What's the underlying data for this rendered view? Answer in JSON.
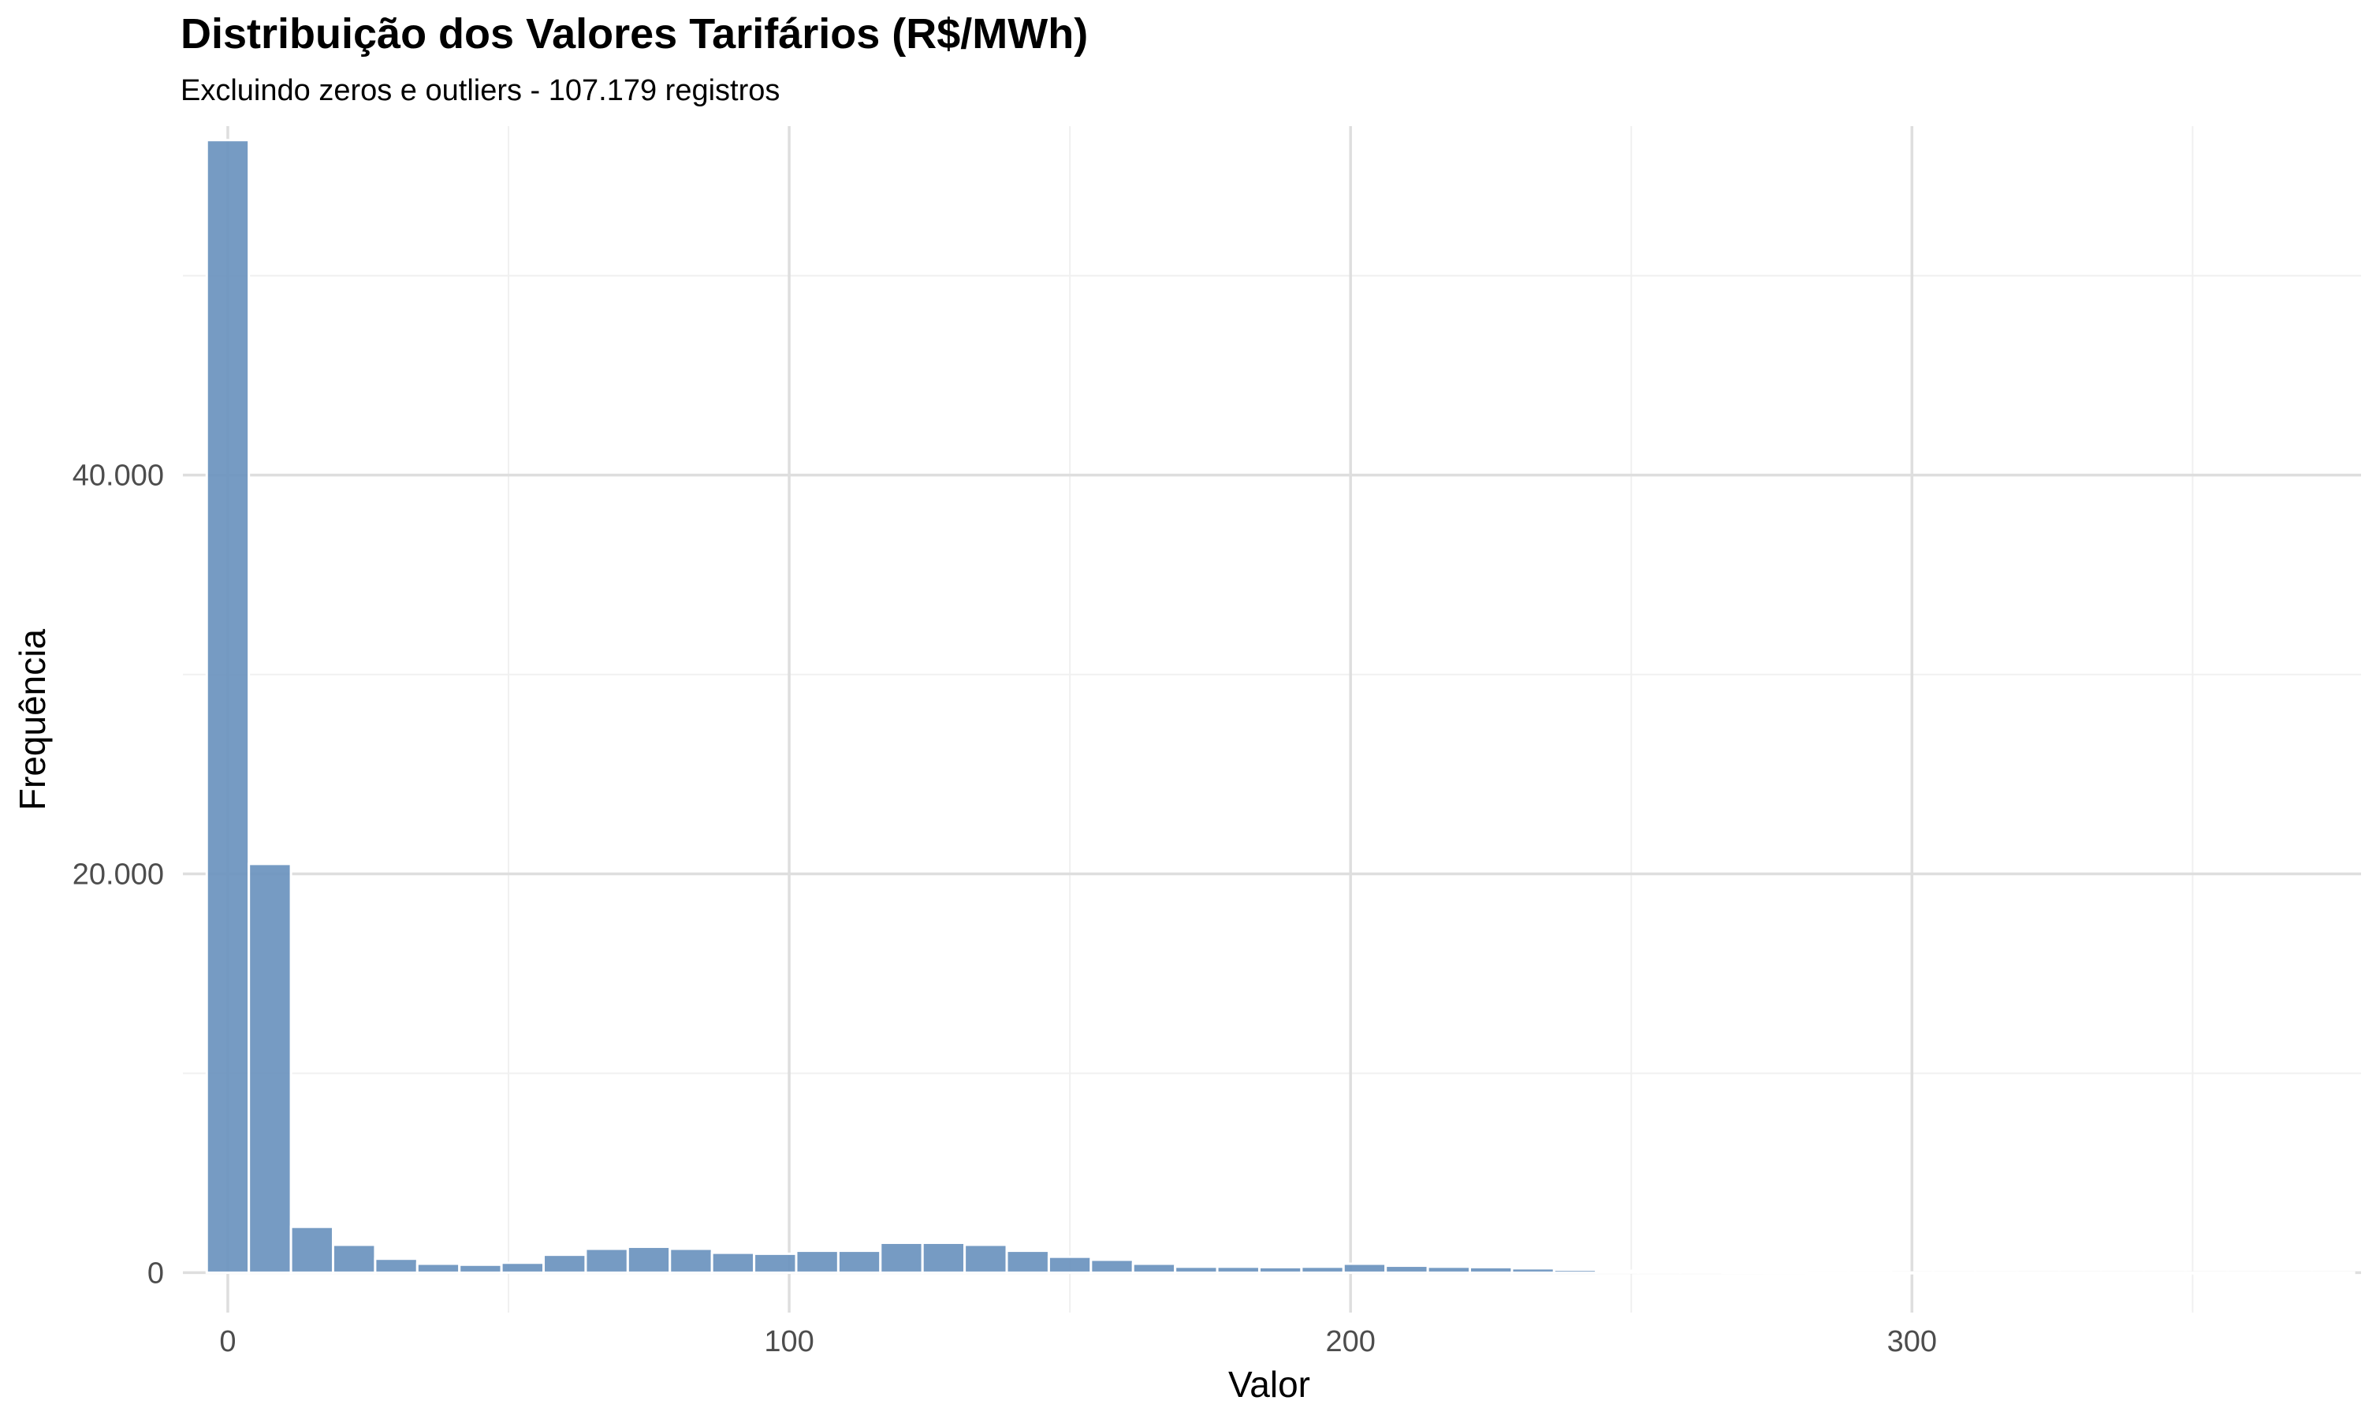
{
  "chart_data": {
    "type": "bar",
    "title": "Distribuição dos Valores Tarifários (R$/MWh)",
    "subtitle": "Excluindo zeros e outliers - 107.179 registros",
    "xlabel": "Valor",
    "ylabel": "Frequência",
    "xlim": [
      -8,
      380
    ],
    "ylim": [
      -2000,
      57500
    ],
    "x_ticks": [
      0,
      100,
      200,
      300
    ],
    "x_tick_labels": [
      "0",
      "100",
      "200",
      "300"
    ],
    "y_ticks": [
      0,
      20000,
      40000
    ],
    "y_tick_labels": [
      "0",
      "20.000",
      "40.000"
    ],
    "bin_width": 7.5,
    "bin_centers": [
      0,
      7.5,
      15,
      22.5,
      30,
      37.5,
      45,
      52.5,
      60,
      67.5,
      75,
      82.5,
      90,
      97.5,
      105,
      112.5,
      120,
      127.5,
      135,
      142.5,
      150,
      157.5,
      165,
      172.5,
      180,
      187.5,
      195,
      202.5,
      210,
      217.5,
      225,
      232.5,
      240,
      247.5,
      255,
      262.5,
      270,
      277.5,
      285,
      292.5,
      300,
      307.5,
      315,
      322.5,
      330,
      337.5,
      345,
      352.5,
      360,
      367.5,
      375
    ],
    "values": [
      56800,
      20500,
      2300,
      1400,
      700,
      450,
      400,
      500,
      900,
      1200,
      1300,
      1200,
      1000,
      950,
      1100,
      1100,
      1500,
      1500,
      1400,
      1100,
      800,
      650,
      450,
      300,
      300,
      280,
      300,
      450,
      350,
      300,
      280,
      220,
      150,
      100,
      60,
      40,
      30,
      20,
      15,
      15,
      10,
      10,
      10,
      5,
      5,
      5,
      5,
      5,
      5,
      5,
      5
    ],
    "bar_color": "#6a93be",
    "grid": true,
    "legend": "none"
  }
}
